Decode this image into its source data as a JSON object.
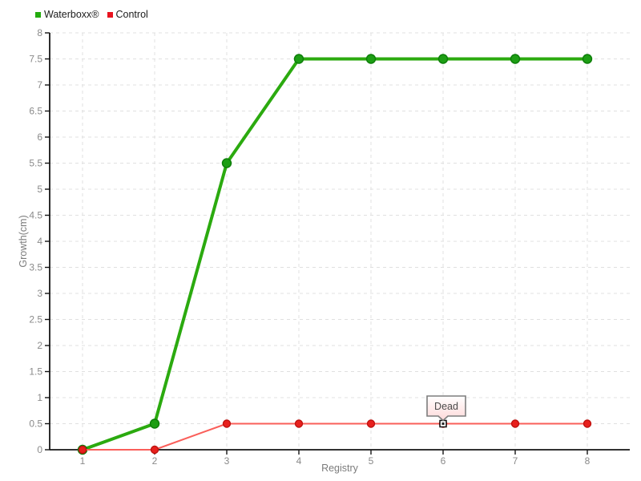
{
  "chart_data": {
    "type": "line",
    "title": "",
    "xlabel": "Registry",
    "ylabel": "Growth(cm)",
    "x": [
      1,
      2,
      3,
      4,
      5,
      6,
      7,
      8
    ],
    "ylim": [
      0,
      8
    ],
    "ytick_step": 0.5,
    "grid": true,
    "legend_position": "top-left",
    "series": [
      {
        "name": "Waterboxx®",
        "values": [
          0,
          0.5,
          5.5,
          7.5,
          7.5,
          7.5,
          7.5,
          7.5
        ],
        "line_color": "#2baa0f",
        "marker_fill": "#1d9e14",
        "marker_stroke": "#0c7d08",
        "swatch_color": "#23ab0d",
        "line_width": 4,
        "marker_radius": 5.5
      },
      {
        "name": "Control",
        "values": [
          0,
          0,
          0.5,
          0.5,
          0.5,
          0.5,
          0.5,
          0.5
        ],
        "line_color": "#fa5f5a",
        "marker_fill": "#e8201d",
        "marker_stroke": "#c01310",
        "swatch_color": "#e8131f",
        "line_width": 2,
        "marker_radius": 4.5,
        "special_points": [
          {
            "x": 6,
            "style": "dead-open-square",
            "label": "Dead"
          }
        ]
      }
    ],
    "annotation": {
      "text": "Dead",
      "x": 6,
      "y": 0.5
    }
  },
  "colors": {
    "background": "#ffffff",
    "axis": "#141414",
    "grid": "#e0e0e0",
    "tick_label": "#8a8a8a",
    "axis_title": "#7c7c7c",
    "tooltip_border": "#7d7d7d",
    "tooltip_bg_top": "#ffffff",
    "tooltip_bg_bottom": "#ffd9d9",
    "tooltip_text": "#4a4a4a",
    "dead_marker_fill": "#ffffff",
    "dead_marker_stroke": "#111111",
    "legend_text": "#1c1c1c"
  }
}
